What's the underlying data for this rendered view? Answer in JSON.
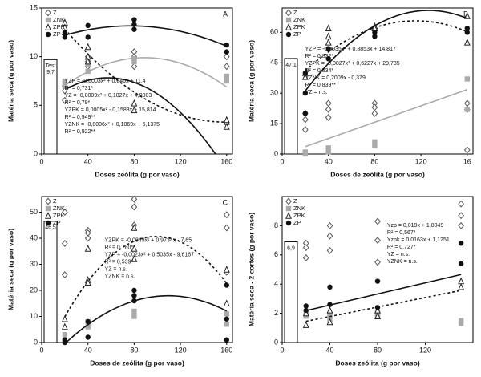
{
  "chart_data": [
    {
      "type": "scatter",
      "panel_label": "A",
      "x_label": "Doses zeólita (g por vaso)",
      "y_label": "Matéria seca (g por vaso)",
      "xlim": [
        0,
        165
      ],
      "xticks": [
        0,
        40,
        80,
        120,
        160
      ],
      "ylim": [
        0,
        15
      ],
      "yticks": [
        0,
        5,
        10,
        15
      ],
      "control": {
        "label": "Test",
        "value": 9.7,
        "value_label": "9,7"
      },
      "annotations": [
        "YZP = -0,0003x² + 0,046x + 11,4",
        "R² = 0,731*",
        "YZ = -0,0009x² + 0,1027x + 4,9003",
        "R² = 0,79*",
        "YZPK = 0,0005x² - 0,1583x + 15,814",
        "R² = 0,949**",
        "YZNK = -0,0006x² + 0,1069x + 5,1375",
        "R² = 0,922**"
      ],
      "series": [
        {
          "name": "Z",
          "marker": "diamond",
          "color": "#555555",
          "x": [
            20,
            20,
            20,
            40,
            40,
            40,
            80,
            80,
            80,
            160,
            160
          ],
          "values": [
            7,
            6.5,
            5.5,
            9.5,
            9,
            10,
            10.5,
            9,
            10,
            9,
            10
          ],
          "fit": {
            "coefficients": [
              -0.0009,
              0.1027,
              4.9003
            ],
            "dashed": false,
            "color": "#111111"
          }
        },
        {
          "name": "ZNK",
          "marker": "square",
          "color": "#aaaaaa",
          "x": [
            20,
            20,
            40,
            40,
            80,
            80,
            160,
            160
          ],
          "values": [
            7.5,
            7,
            9.2,
            8.5,
            9.5,
            9.8,
            7.5,
            8
          ],
          "fit": {
            "coefficients": [
              -0.0006,
              0.1069,
              5.1375
            ],
            "dashed": false,
            "color": "#aaaaaa"
          }
        },
        {
          "name": "ZPK",
          "marker": "triangle",
          "color": "#222222",
          "x": [
            20,
            20,
            20,
            40,
            40,
            40,
            80,
            80,
            160,
            160,
            160
          ],
          "values": [
            13.5,
            13,
            12.5,
            11,
            10,
            9.5,
            5.2,
            4.5,
            3.3,
            3.5,
            2.8
          ],
          "fit": {
            "coefficients": [
              0.0005,
              -0.1583,
              15.814
            ],
            "dashed": true,
            "color": "#111111"
          }
        },
        {
          "name": "ZP",
          "marker": "circle",
          "color": "#111111",
          "x": [
            20,
            20,
            40,
            40,
            80,
            80,
            80,
            160,
            160
          ],
          "values": [
            12.5,
            12,
            13.2,
            12,
            13.8,
            13.3,
            12.8,
            11.2,
            10.5
          ],
          "fit": {
            "coefficients": [
              -0.0003,
              0.046,
              11.4
            ],
            "dashed": false,
            "color": "#111111"
          }
        }
      ]
    },
    {
      "type": "scatter",
      "panel_label": "B",
      "x_label": "Doses de zeólita (g por vaso)",
      "y_label": "Matéria seca (g por vaso)",
      "xlim": [
        0,
        165
      ],
      "xticks": [
        0,
        40,
        80,
        120,
        {
          "value": 160,
          "label": "16"
        }
      ],
      "ylim": [
        0,
        72
      ],
      "yticks": [
        0,
        15,
        30,
        45,
        60
      ],
      "control": {
        "value": 47.1,
        "value_label": "47,1"
      },
      "annotations": [
        "YZP = -0,0035x² + 0,8853x + 14,817",
        "R² = 0,832*",
        "YZPK = -0,0027x² + 0,6227x + 29,785",
        "R² = 0,534*",
        "YZNK = 0,2009x - 0,379",
        "R² = 0,839**",
        "YZ = n.s."
      ],
      "series": [
        {
          "name": "Z",
          "marker": "diamond",
          "color": "#555555",
          "x": [
            20,
            20,
            20,
            40,
            40,
            40,
            80,
            80,
            80,
            160,
            160,
            160
          ],
          "values": [
            17,
            12,
            20,
            25,
            22,
            18,
            20,
            25,
            23,
            25,
            2,
            22
          ]
        },
        {
          "name": "ZNK",
          "marker": "square",
          "color": "#aaaaaa",
          "x": [
            20,
            20,
            40,
            40,
            80,
            80,
            160,
            160
          ],
          "values": [
            0,
            1,
            1,
            3,
            4,
            6,
            37,
            22
          ],
          "fit": {
            "coefficients": [
              0.2009,
              -0.379
            ],
            "dashed": false,
            "color": "#aaaaaa"
          }
        },
        {
          "name": "ZPK",
          "marker": "triangle",
          "color": "#222222",
          "x": [
            20,
            20,
            40,
            40,
            40,
            80,
            80,
            160,
            160
          ],
          "values": [
            40,
            38,
            62,
            58,
            55,
            63,
            62,
            68,
            55
          ],
          "fit": {
            "coefficients": [
              -0.0027,
              0.6227,
              29.785
            ],
            "dashed": true,
            "color": "#111111"
          }
        },
        {
          "name": "ZP",
          "marker": "circle",
          "color": "#111111",
          "x": [
            20,
            20,
            20,
            40,
            40,
            80,
            80,
            160,
            160
          ],
          "values": [
            40,
            30,
            20,
            47,
            52,
            60,
            58,
            60,
            62
          ],
          "fit": {
            "coefficients": [
              -0.0035,
              0.8853,
              14.817
            ],
            "dashed": false,
            "color": "#111111"
          }
        }
      ]
    },
    {
      "type": "scatter",
      "panel_label": "C",
      "x_label": "Doses de zeólita (g por vaso)",
      "y_label": "Matéria seca (g por vaso)",
      "xlim": [
        0,
        165
      ],
      "xticks": [
        0,
        40,
        80,
        120,
        160
      ],
      "ylim": [
        0,
        56
      ],
      "yticks": [
        0,
        10,
        20,
        30,
        40,
        50
      ],
      "control": {
        "value": 46.5,
        "value_label": "46,5"
      },
      "annotations": [
        "YZPK = -0,0049x² + 0,9734x - 7,65",
        "R² = 0,780**",
        "YZP = -0,0023x² + 0,5035x - 9,6167",
        "R² = 0,539*",
        "YZ = n.s.",
        "YZNK = n.s."
      ],
      "series": [
        {
          "name": "Z",
          "marker": "diamond",
          "color": "#555555",
          "x": [
            20,
            20,
            20,
            40,
            40,
            40,
            80,
            80,
            80,
            160,
            160,
            160
          ],
          "values": [
            50,
            38,
            26,
            43,
            42,
            40,
            55,
            52,
            45,
            49,
            44,
            27
          ]
        },
        {
          "name": "ZNK",
          "marker": "square",
          "color": "#aaaaaa",
          "x": [
            20,
            20,
            40,
            40,
            80,
            80,
            160,
            160
          ],
          "values": [
            3,
            1,
            8,
            6,
            12,
            10,
            11,
            7
          ]
        },
        {
          "name": "ZPK",
          "marker": "triangle",
          "color": "#222222",
          "x": [
            20,
            20,
            40,
            40,
            40,
            80,
            80,
            80,
            160,
            160
          ],
          "values": [
            9,
            6,
            36,
            24,
            23,
            44,
            36,
            32,
            28,
            15
          ],
          "fit": {
            "coefficients": [
              -0.0049,
              0.9734,
              -7.65
            ],
            "dashed": true,
            "color": "#111111"
          }
        },
        {
          "name": "ZP",
          "marker": "circle",
          "color": "#111111",
          "x": [
            20,
            20,
            40,
            40,
            80,
            80,
            80,
            160,
            160,
            160
          ],
          "values": [
            0,
            1,
            8,
            2,
            20,
            18,
            16,
            22,
            9,
            1
          ],
          "fit": {
            "coefficients": [
              -0.0023,
              0.5035,
              -9.6167
            ],
            "dashed": false,
            "color": "#111111"
          }
        }
      ]
    },
    {
      "type": "scatter",
      "x_label": "Doses zeólita (g por vaso)",
      "y_label": "Matéria seca - 2 cortes (g por vaso)",
      "xlim": [
        0,
        160
      ],
      "xticks": [
        0,
        40,
        80,
        120
      ],
      "ylim": [
        0,
        10
      ],
      "yticks": [
        0,
        2,
        4,
        6,
        8
      ],
      "control": {
        "value": 6.9,
        "value_label": "6,9"
      },
      "annotations": [
        "Yzp = 0,019x + 1,8049",
        "R² = 0,567*",
        "Yzpk = 0,0163x + 1,1251",
        "R² = 0,727*",
        "YZ = n.s.",
        "YZNK = n.s."
      ],
      "series": [
        {
          "name": "Z",
          "marker": "diamond",
          "color": "#555555",
          "x": [
            20,
            20,
            20,
            40,
            40,
            40,
            80,
            80,
            80,
            150,
            150,
            150
          ],
          "values": [
            6.8,
            6.5,
            5.8,
            8,
            7.3,
            6.3,
            8.3,
            7,
            5.5,
            9.5,
            8.7,
            8
          ]
        },
        {
          "name": "ZNK",
          "marker": "square",
          "color": "#aaaaaa",
          "x": [
            20,
            20,
            40,
            40,
            80,
            80,
            150,
            150
          ],
          "values": [
            2,
            1.8,
            1.9,
            1.6,
            2,
            1.8,
            1.5,
            1.3
          ]
        },
        {
          "name": "ZPK",
          "marker": "triangle",
          "color": "#222222",
          "x": [
            20,
            20,
            40,
            40,
            80,
            80,
            150,
            150
          ],
          "values": [
            1.2,
            2,
            2.2,
            1.4,
            2.2,
            1.8,
            3.8,
            4.2
          ],
          "fit": {
            "coefficients": [
              0.0163,
              1.1251
            ],
            "dashed": true,
            "color": "#111111"
          }
        },
        {
          "name": "ZP",
          "marker": "circle",
          "color": "#111111",
          "x": [
            20,
            20,
            40,
            40,
            80,
            80,
            150,
            150
          ],
          "values": [
            2.2,
            2.5,
            3.8,
            2.6,
            4.2,
            2.4,
            6.8,
            5.4
          ],
          "fit": {
            "coefficients": [
              0.019,
              1.8049
            ],
            "dashed": false,
            "color": "#111111"
          }
        }
      ]
    }
  ]
}
